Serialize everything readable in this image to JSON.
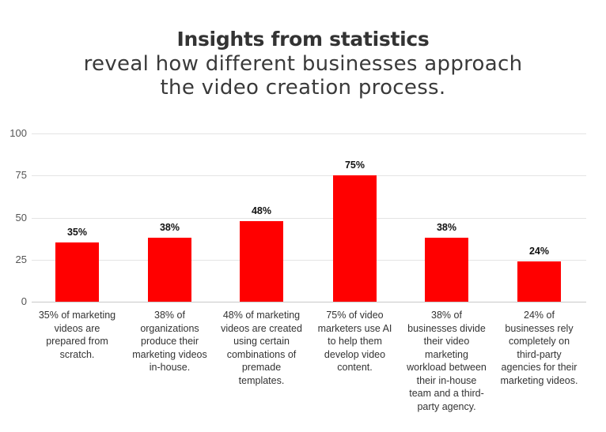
{
  "title": {
    "main": "Insights from statistics",
    "line2": "reveal how different businesses approach",
    "line3": "the video creation process."
  },
  "colors": {
    "bar": "#ff0000",
    "grid": "#e4e4e4",
    "text": "#333333"
  },
  "chart_data": {
    "type": "bar",
    "title": "Insights from statistics reveal how different businesses approach the video creation process.",
    "xlabel": "",
    "ylabel": "",
    "ylim": [
      0,
      100
    ],
    "yticks": [
      0,
      25,
      50,
      75,
      100
    ],
    "grid": true,
    "legend": null,
    "categories": [
      "35% of marketing videos are prepared from scratch.",
      "38% of organizations produce their marketing videos in-house.",
      "48% of marketing videos are created using certain combinations of premade templates.",
      "75% of video marketers use AI to help them develop video content.",
      "38% of businesses divide their video marketing workload between their in-house team and a third-party agency.",
      "24% of businesses rely completely on third-party agencies for their marketing videos."
    ],
    "values": [
      35,
      38,
      48,
      75,
      38,
      24
    ],
    "data_labels": [
      "35%",
      "38%",
      "48%",
      "75%",
      "38%",
      "24%"
    ]
  },
  "axis": {
    "yticks": [
      "100",
      "75",
      "50",
      "25",
      "0"
    ]
  },
  "bars": [
    {
      "value": 35,
      "label": "35%",
      "lines": [
        "35% of marketing",
        "videos are",
        "prepared from",
        "scratch."
      ]
    },
    {
      "value": 38,
      "label": "38%",
      "lines": [
        "38% of",
        "organizations",
        "produce their",
        "marketing videos",
        "in-house."
      ]
    },
    {
      "value": 48,
      "label": "48%",
      "lines": [
        "48% of marketing",
        "videos are created",
        "using certain",
        "combinations of",
        "premade",
        "templates."
      ]
    },
    {
      "value": 75,
      "label": "75%",
      "lines": [
        "75% of video",
        "marketers use AI",
        "to help them",
        "develop video",
        "content."
      ]
    },
    {
      "value": 38,
      "label": "38%",
      "lines": [
        "38% of",
        "businesses divide",
        "their video",
        "marketing",
        "workload between",
        "their in-house",
        "team and a third-",
        "party agency."
      ]
    },
    {
      "value": 24,
      "label": "24%",
      "lines": [
        "24% of",
        "businesses rely",
        "completely on",
        "third-party",
        "agencies for their",
        "marketing videos."
      ]
    }
  ]
}
